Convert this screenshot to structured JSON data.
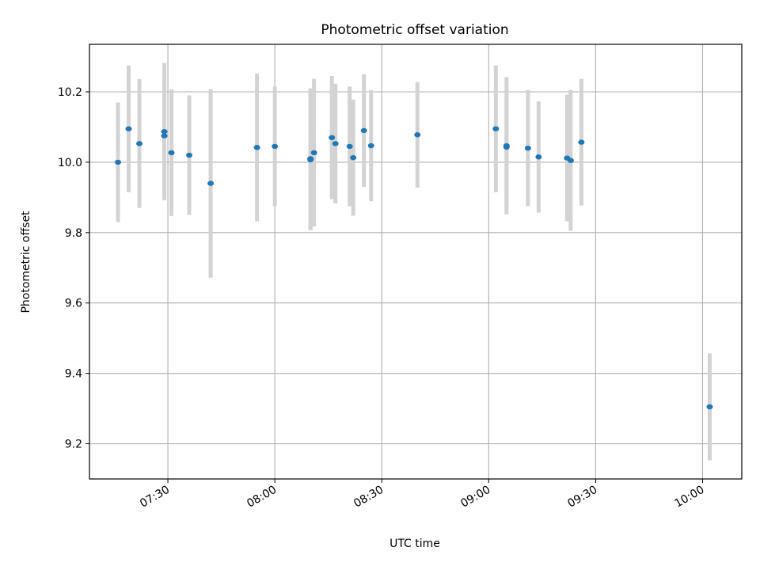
{
  "chart_data": {
    "type": "scatter",
    "title": "Photometric offset variation",
    "xlabel": "UTC time",
    "ylabel": "Photometric offset",
    "x_ticks": [
      "07:30",
      "08:00",
      "08:30",
      "09:00",
      "09:30",
      "10:00"
    ],
    "y_ticks": [
      "9.2",
      "9.4",
      "9.6",
      "9.8",
      "10.0",
      "10.2"
    ],
    "xlim": [
      "07:08",
      "10:11"
    ],
    "ylim": [
      9.1,
      10.335
    ],
    "grid": true,
    "point_color": "#1f77b4",
    "errorbar_color": "#d3d3d3",
    "series": [
      {
        "points": [
          {
            "t": "07:16",
            "y": 10.0,
            "err": 0.17
          },
          {
            "t": "07:19",
            "y": 10.095,
            "err": 0.18
          },
          {
            "t": "07:22",
            "y": 10.053,
            "err": 0.183
          },
          {
            "t": "07:29",
            "y": 10.087,
            "err": 0.195
          },
          {
            "t": "07:29",
            "y": 10.075,
            "err": 0.17
          },
          {
            "t": "07:31",
            "y": 10.027,
            "err": 0.18
          },
          {
            "t": "07:36",
            "y": 10.02,
            "err": 0.17
          },
          {
            "t": "07:42",
            "y": 9.94,
            "err": 0.268
          },
          {
            "t": "07:55",
            "y": 10.042,
            "err": 0.21
          },
          {
            "t": "08:00",
            "y": 10.045,
            "err": 0.17
          },
          {
            "t": "08:10",
            "y": 10.007,
            "err": 0.2
          },
          {
            "t": "08:10",
            "y": 10.01,
            "err": 0.2
          },
          {
            "t": "08:11",
            "y": 10.027,
            "err": 0.21
          },
          {
            "t": "08:16",
            "y": 10.07,
            "err": 0.175
          },
          {
            "t": "08:17",
            "y": 10.053,
            "err": 0.17
          },
          {
            "t": "08:21",
            "y": 10.045,
            "err": 0.17
          },
          {
            "t": "08:22",
            "y": 10.013,
            "err": 0.165
          },
          {
            "t": "08:25",
            "y": 10.09,
            "err": 0.16
          },
          {
            "t": "08:27",
            "y": 10.047,
            "err": 0.158
          },
          {
            "t": "08:40",
            "y": 10.078,
            "err": 0.15
          },
          {
            "t": "09:02",
            "y": 10.095,
            "err": 0.18
          },
          {
            "t": "09:05",
            "y": 10.043,
            "err": 0.175
          },
          {
            "t": "09:05",
            "y": 10.047,
            "err": 0.195
          },
          {
            "t": "09:11",
            "y": 10.04,
            "err": 0.165
          },
          {
            "t": "09:14",
            "y": 10.015,
            "err": 0.158
          },
          {
            "t": "09:22",
            "y": 10.012,
            "err": 0.18
          },
          {
            "t": "09:23",
            "y": 10.005,
            "err": 0.2
          },
          {
            "t": "09:26",
            "y": 10.057,
            "err": 0.18
          },
          {
            "t": "10:02",
            "y": 9.305,
            "err": 0.152
          }
        ]
      }
    ]
  }
}
